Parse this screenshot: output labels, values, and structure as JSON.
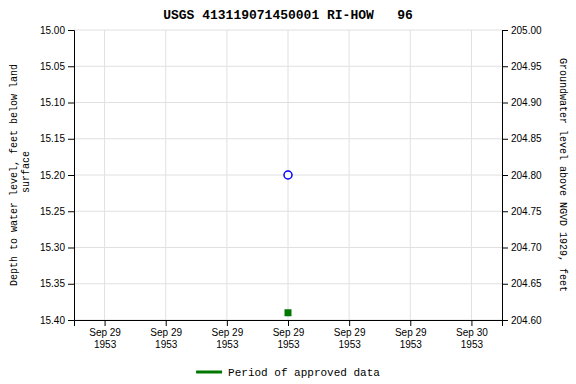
{
  "chart_data": {
    "type": "scatter",
    "title": "USGS 413119071450001 RI-HOW   96",
    "ylabel": "Depth to water level, feet below land\n surface",
    "y2label": "Groundwater level above NGVD 1929, feet",
    "categories": [
      "Sep 29\n1953",
      "Sep 29\n1953",
      "Sep 29\n1953",
      "Sep 29\n1953",
      "Sep 29\n1953",
      "Sep 29\n1953",
      "Sep 30\n1953"
    ],
    "series": [
      {
        "color": "#0000ff",
        "marker": "circle-open",
        "values": [
          null,
          null,
          null,
          15.2,
          null,
          null,
          null
        ]
      },
      {
        "name": "Period of approved data",
        "color": "#007700",
        "marker": "square",
        "values": [
          null,
          null,
          null,
          15.39,
          null,
          null,
          null
        ]
      }
    ],
    "ylim": [
      15.4,
      15.0
    ],
    "yticks": [
      {
        "value": 15.0,
        "label": "15.00"
      },
      15.05,
      {
        "value": 15.1,
        "label": "15.10"
      },
      15.15,
      {
        "value": 15.2,
        "label": "15.20"
      },
      15.25,
      {
        "value": 15.3,
        "label": "15.30"
      },
      15.35,
      {
        "value": 15.4,
        "label": "15.40"
      }
    ],
    "y2lim": [
      204.6,
      205.0
    ],
    "y2ticks": [
      {
        "value": 205.0,
        "label": "205.00"
      },
      204.95,
      {
        "value": 204.9,
        "label": "204.90"
      },
      204.85,
      {
        "value": 204.8,
        "label": "204.80"
      },
      204.75,
      {
        "value": 204.7,
        "label": "204.70"
      },
      204.65,
      {
        "value": 204.6,
        "label": "204.60"
      }
    ],
    "grid": true,
    "legend": "bottom"
  }
}
